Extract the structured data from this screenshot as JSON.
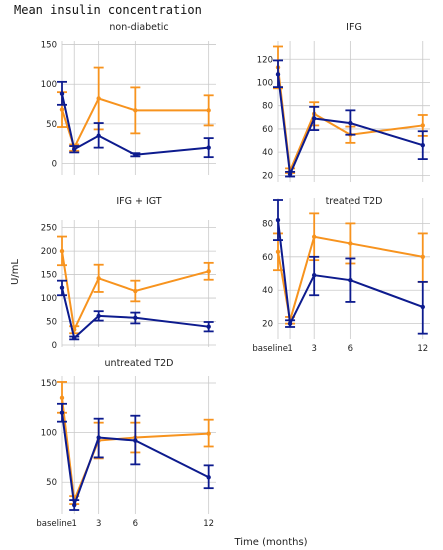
{
  "title": "Mean insulin concentration",
  "ylabel": "U/mL",
  "xlabel": "Time (months)",
  "colors": {
    "series_a": "#f7931e",
    "series_b": "#0d1b8e"
  },
  "x_ticks": [
    {
      "x": 0,
      "label": "baseline"
    },
    {
      "x": 1,
      "label": "1"
    },
    {
      "x": 3,
      "label": "3"
    },
    {
      "x": 6,
      "label": "6"
    },
    {
      "x": 12,
      "label": "12"
    }
  ],
  "chart_data": [
    {
      "type": "line",
      "title": "non-diabetic",
      "ylim": [
        -12,
        152
      ],
      "yticks": [
        0,
        50,
        100,
        150
      ],
      "x": [
        0,
        1,
        3,
        6,
        12
      ],
      "series": [
        {
          "color": "#f7931e",
          "values": [
            68,
            20,
            82,
            67,
            67
          ],
          "lower": [
            46,
            16,
            43,
            38,
            48
          ],
          "upper": [
            90,
            24,
            121,
            96,
            86
          ]
        },
        {
          "color": "#0d1b8e",
          "values": [
            88,
            18,
            35,
            11,
            20
          ],
          "lower": [
            74,
            14,
            20,
            9,
            8
          ],
          "upper": [
            103,
            22,
            51,
            13,
            32
          ]
        }
      ]
    },
    {
      "type": "line",
      "title": "IFG",
      "ylim": [
        16,
        134
      ],
      "yticks": [
        20,
        40,
        60,
        80,
        100,
        120
      ],
      "x": [
        0,
        1,
        3,
        6,
        12
      ],
      "series": [
        {
          "color": "#f7931e",
          "values": [
            113,
            24,
            73,
            55,
            63
          ],
          "lower": [
            95,
            22,
            63,
            48,
            54
          ],
          "upper": [
            131,
            26,
            83,
            62,
            72
          ]
        },
        {
          "color": "#0d1b8e",
          "values": [
            107,
            21,
            69,
            65,
            46
          ],
          "lower": [
            96,
            19,
            59,
            55,
            34
          ],
          "upper": [
            119,
            23,
            79,
            76,
            58
          ]
        }
      ]
    },
    {
      "type": "line",
      "title": "IFG + IGT",
      "ylim": [
        0,
        262
      ],
      "yticks": [
        0,
        50,
        100,
        150,
        200,
        250
      ],
      "x": [
        0,
        1,
        3,
        6,
        12
      ],
      "series": [
        {
          "color": "#f7931e",
          "values": [
            200,
            33,
            142,
            115,
            157
          ],
          "lower": [
            170,
            25,
            113,
            93,
            139
          ],
          "upper": [
            231,
            40,
            171,
            137,
            175
          ]
        },
        {
          "color": "#0d1b8e",
          "values": [
            122,
            15,
            62,
            58,
            39
          ],
          "lower": [
            106,
            12,
            52,
            46,
            29
          ],
          "upper": [
            137,
            18,
            72,
            69,
            49
          ]
        }
      ]
    },
    {
      "type": "line",
      "title": "treated T2D",
      "ylim": [
        12,
        94
      ],
      "yticks": [
        20,
        40,
        60,
        80
      ],
      "x": [
        0,
        1,
        3,
        6,
        12
      ],
      "series": [
        {
          "color": "#f7931e",
          "values": [
            63,
            22,
            72,
            68,
            60
          ],
          "lower": [
            52,
            20,
            58,
            56,
            45
          ],
          "upper": [
            74,
            24,
            86,
            80,
            74
          ]
        },
        {
          "color": "#0d1b8e",
          "values": [
            82,
            20,
            49,
            46,
            30
          ],
          "lower": [
            70,
            18,
            37,
            33,
            14
          ],
          "upper": [
            94,
            22,
            60,
            59,
            45
          ]
        }
      ]
    },
    {
      "type": "line",
      "title": "untreated T2D",
      "ylim": [
        20,
        155
      ],
      "yticks": [
        50,
        100,
        150
      ],
      "x": [
        0,
        1,
        3,
        6,
        12
      ],
      "series": [
        {
          "color": "#f7931e",
          "values": [
            135,
            32,
            92,
            95,
            99
          ],
          "lower": [
            120,
            28,
            74,
            80,
            86
          ],
          "upper": [
            151,
            36,
            110,
            110,
            113
          ]
        },
        {
          "color": "#0d1b8e",
          "values": [
            120,
            27,
            95,
            92,
            55
          ],
          "lower": [
            111,
            22,
            75,
            68,
            44
          ],
          "upper": [
            129,
            32,
            114,
            117,
            67
          ]
        }
      ]
    }
  ]
}
